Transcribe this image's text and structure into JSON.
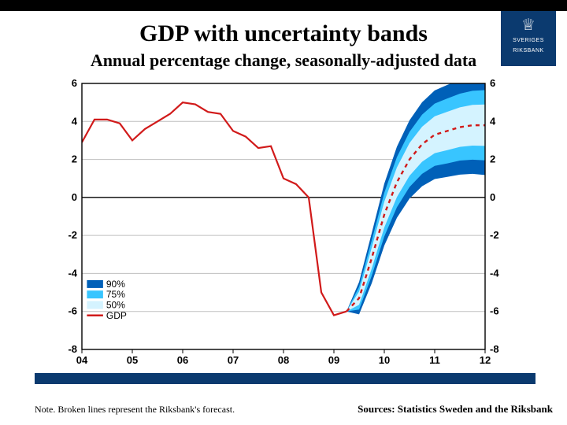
{
  "logo": {
    "org_line1": "SVERIGES",
    "org_line2": "RIKSBANK"
  },
  "title": "GDP with uncertainty bands",
  "subtitle": "Annual percentage change, seasonally-adjusted data",
  "note": "Note. Broken lines represent the Riksbank's forecast.",
  "sources": "Sources: Statistics Sweden and the Riksbank",
  "chart": {
    "type": "line-with-fan",
    "background_color": "#ffffff",
    "axis_color": "#000000",
    "grid_color": "#bfbfbf",
    "xlim": [
      2004,
      2012
    ],
    "ylim": [
      -8,
      6
    ],
    "ytick_step": 2,
    "xticks": [
      2004,
      2005,
      2006,
      2007,
      2008,
      2009,
      2010,
      2011,
      2012
    ],
    "xtick_labels": [
      "04",
      "05",
      "06",
      "07",
      "08",
      "09",
      "10",
      "11",
      "12"
    ],
    "label_fontsize": 13,
    "axis_font": "Arial",
    "gdp_line_color": "#d11a1a",
    "gdp_series": [
      [
        2004.0,
        2.9
      ],
      [
        2004.25,
        4.1
      ],
      [
        2004.5,
        4.1
      ],
      [
        2004.75,
        3.9
      ],
      [
        2005.0,
        3.0
      ],
      [
        2005.25,
        3.6
      ],
      [
        2005.5,
        4.0
      ],
      [
        2005.75,
        4.4
      ],
      [
        2006.0,
        5.0
      ],
      [
        2006.25,
        4.9
      ],
      [
        2006.5,
        4.5
      ],
      [
        2006.75,
        4.4
      ],
      [
        2007.0,
        3.5
      ],
      [
        2007.25,
        3.2
      ],
      [
        2007.5,
        2.6
      ],
      [
        2007.75,
        2.7
      ],
      [
        2008.0,
        1.0
      ],
      [
        2008.25,
        0.7
      ],
      [
        2008.5,
        0.0
      ],
      [
        2008.75,
        -5.0
      ],
      [
        2009.0,
        -6.2
      ],
      [
        2009.25,
        -6.0
      ]
    ],
    "forecast_line_color": "#d11a1a",
    "forecast_dash": "5,5",
    "forecast_center": [
      [
        2009.25,
        -6.0
      ],
      [
        2009.5,
        -5.3
      ],
      [
        2009.75,
        -3.2
      ],
      [
        2010.0,
        -0.9
      ],
      [
        2010.25,
        0.8
      ],
      [
        2010.5,
        2.0
      ],
      [
        2010.75,
        2.8
      ],
      [
        2011.0,
        3.3
      ],
      [
        2011.25,
        3.5
      ],
      [
        2011.5,
        3.7
      ],
      [
        2011.75,
        3.8
      ],
      [
        2012.0,
        3.8
      ]
    ],
    "bands": [
      {
        "label": "50%",
        "fill": "#d4f3ff",
        "offsets": [
          [
            2009.25,
            0.0
          ],
          [
            2009.5,
            0.35
          ],
          [
            2009.75,
            0.55
          ],
          [
            2010.0,
            0.68
          ],
          [
            2010.25,
            0.78
          ],
          [
            2010.5,
            0.86
          ],
          [
            2010.75,
            0.92
          ],
          [
            2011.0,
            0.97
          ],
          [
            2011.25,
            1.01
          ],
          [
            2011.5,
            1.04
          ],
          [
            2011.75,
            1.07
          ],
          [
            2012.0,
            1.09
          ]
        ]
      },
      {
        "label": "75%",
        "fill": "#38c5ff",
        "offsets": [
          [
            2009.25,
            0.0
          ],
          [
            2009.5,
            0.6
          ],
          [
            2009.75,
            0.93
          ],
          [
            2010.0,
            1.15
          ],
          [
            2010.25,
            1.32
          ],
          [
            2010.5,
            1.45
          ],
          [
            2010.75,
            1.56
          ],
          [
            2011.0,
            1.64
          ],
          [
            2011.25,
            1.71
          ],
          [
            2011.5,
            1.76
          ],
          [
            2011.75,
            1.81
          ],
          [
            2012.0,
            1.85
          ]
        ]
      },
      {
        "label": "90%",
        "fill": "#0060b8",
        "offsets": [
          [
            2009.25,
            0.0
          ],
          [
            2009.5,
            0.85
          ],
          [
            2009.75,
            1.32
          ],
          [
            2010.0,
            1.63
          ],
          [
            2010.25,
            1.87
          ],
          [
            2010.5,
            2.06
          ],
          [
            2010.75,
            2.21
          ],
          [
            2011.0,
            2.33
          ],
          [
            2011.25,
            2.42
          ],
          [
            2011.5,
            2.5
          ],
          [
            2011.75,
            2.56
          ],
          [
            2012.0,
            2.62
          ]
        ]
      }
    ],
    "legend": {
      "x": 2004.1,
      "y_top": -4.6,
      "row_height": 0.55,
      "swatch_width": 0.32,
      "items": [
        {
          "label": "90%",
          "swatch": "#0060b8",
          "type": "fill"
        },
        {
          "label": "75%",
          "swatch": "#38c5ff",
          "type": "fill"
        },
        {
          "label": "50%",
          "swatch": "#d4f3ff",
          "type": "fill"
        },
        {
          "label": "GDP",
          "swatch": "#d11a1a",
          "type": "line"
        }
      ]
    }
  },
  "colors": {
    "topbar": "#000000",
    "brand_blue": "#0b3a6f"
  }
}
